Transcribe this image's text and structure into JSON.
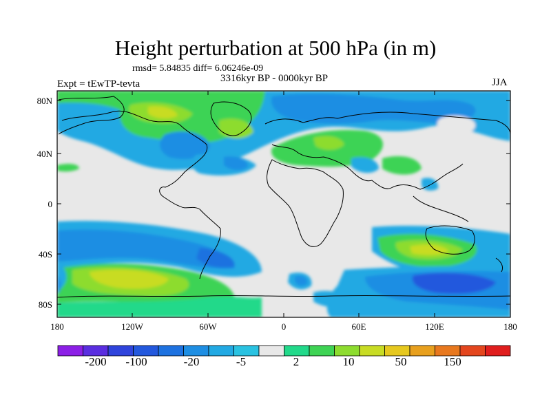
{
  "title": "Height perturbation at 500 hPa (in m)",
  "stats": "rmsd= 5.84835 diff= 6.06246e-09",
  "period": "3316kyr BP - 0000kyr BP",
  "expt": "Expt = tEwTP-tevta",
  "season": "JJA",
  "lat_labels": [
    "80N",
    "40N",
    "0",
    "40S",
    "80S"
  ],
  "lon_labels": [
    "180",
    "120W",
    "60W",
    "0",
    "60E",
    "120E",
    "180"
  ],
  "colorbar": {
    "colors": [
      "#8c1fe6",
      "#5a2ee0",
      "#2f44dc",
      "#2358dd",
      "#1e72e0",
      "#1e8ee3",
      "#22a9e3",
      "#2ac2e1",
      "#e8e8e8",
      "#22d98a",
      "#3ed354",
      "#8ddc2f",
      "#c8dc24",
      "#e6c81e",
      "#e8a01e",
      "#e8781e",
      "#e4461e",
      "#e01e1e"
    ],
    "labels": [
      "-200",
      "-100",
      "-20",
      "-5",
      "2",
      "10",
      "50",
      "150"
    ]
  }
}
